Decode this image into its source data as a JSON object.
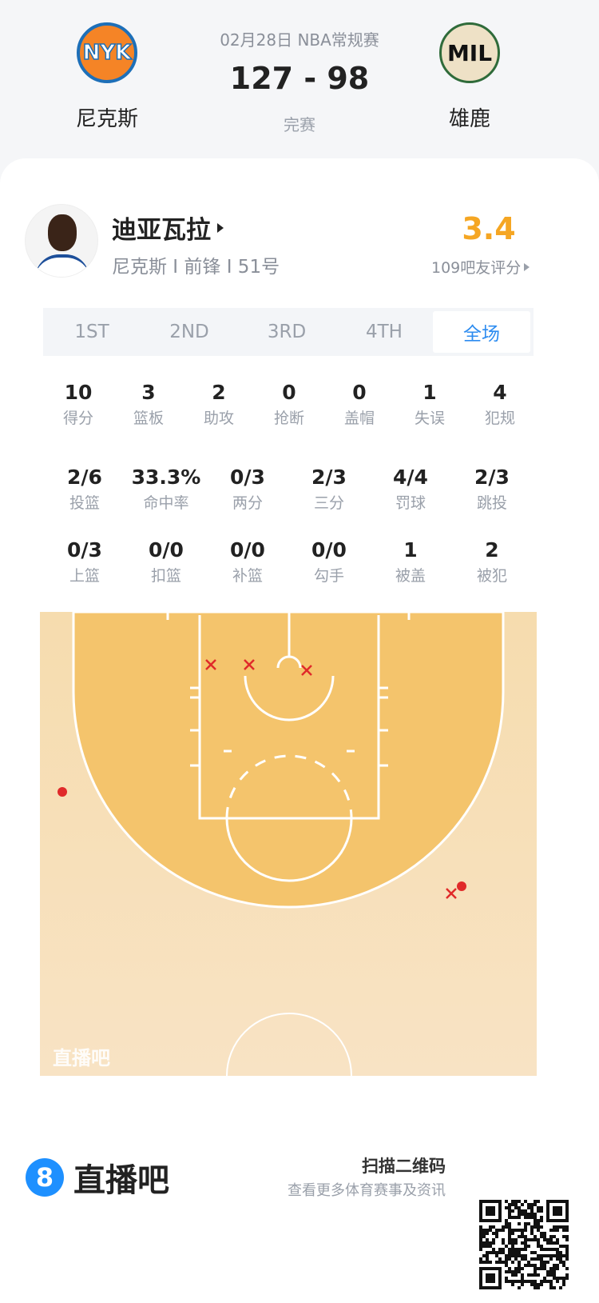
{
  "game": {
    "date_league": "02月28日 NBA常规赛",
    "score": "127 - 98",
    "status": "完赛"
  },
  "home": {
    "abbr": "NYK",
    "name": "尼克斯",
    "color": "#f58426"
  },
  "away": {
    "abbr": "MIL",
    "name": "雄鹿",
    "color": "#00471b"
  },
  "player": {
    "name": "迪亚瓦拉",
    "info": "尼克斯 I 前锋 I 51号",
    "rating": "3.4",
    "rating_label": "109吧友评分",
    "rating_color": "#f5a623"
  },
  "tabs": [
    {
      "label": "1ST"
    },
    {
      "label": "2ND"
    },
    {
      "label": "3RD"
    },
    {
      "label": "4TH"
    },
    {
      "label": "全场",
      "active": true
    }
  ],
  "stats_row1": [
    {
      "value": "10",
      "label": "得分"
    },
    {
      "value": "3",
      "label": "篮板"
    },
    {
      "value": "2",
      "label": "助攻"
    },
    {
      "value": "0",
      "label": "抢断"
    },
    {
      "value": "0",
      "label": "盖帽"
    },
    {
      "value": "1",
      "label": "失误"
    },
    {
      "value": "4",
      "label": "犯规"
    }
  ],
  "stats_row2": [
    {
      "value": "2/6",
      "label": "投篮"
    },
    {
      "value": "33.3%",
      "label": "命中率"
    },
    {
      "value": "0/3",
      "label": "两分"
    },
    {
      "value": "2/3",
      "label": "三分"
    },
    {
      "value": "4/4",
      "label": "罚球"
    },
    {
      "value": "2/3",
      "label": "跳投"
    }
  ],
  "stats_row3": [
    {
      "value": "0/3",
      "label": "上篮"
    },
    {
      "value": "0/0",
      "label": "扣篮"
    },
    {
      "value": "0/0",
      "label": "补篮"
    },
    {
      "value": "0/0",
      "label": "勾手"
    },
    {
      "value": "1",
      "label": "被盖"
    },
    {
      "value": "2",
      "label": "被犯"
    }
  ],
  "shot_chart": {
    "watermark": "直播吧",
    "shots": [
      {
        "result": "miss",
        "zone": "paint-left"
      },
      {
        "result": "miss",
        "zone": "paint-left-center"
      },
      {
        "result": "miss",
        "zone": "paint-right-of-rim"
      },
      {
        "result": "made",
        "zone": "left-wing-three"
      },
      {
        "result": "made",
        "zone": "right-wing-three"
      },
      {
        "result": "miss",
        "zone": "right-wing-three"
      }
    ],
    "made_color": "#e02a2a",
    "miss_color": "#e02a2a"
  },
  "footer": {
    "brand": "直播吧",
    "brand_icon": "8",
    "scan_title": "扫描二维码",
    "scan_sub": "查看更多体育赛事及资讯"
  }
}
